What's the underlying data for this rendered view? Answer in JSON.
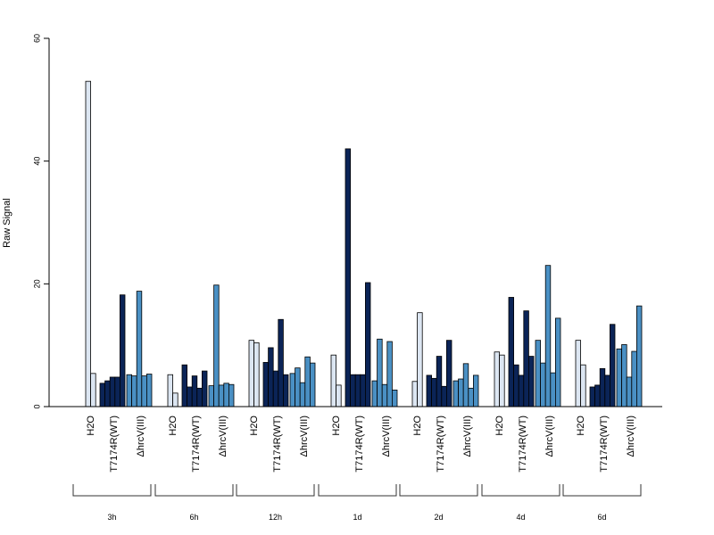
{
  "chart_data": {
    "type": "bar",
    "title": "",
    "xlabel": "",
    "ylabel": "Raw Signal",
    "ylim": [
      0,
      60
    ],
    "yticks": [
      0,
      20,
      40,
      60
    ],
    "legend": "none",
    "series": [
      {
        "key": "H2O",
        "color": "#dce6f2"
      },
      {
        "key": "T717",
        "color": "#0b2457"
      },
      {
        "key": "hrc",
        "color": "#4a90c4"
      }
    ],
    "groups": [
      {
        "label": "3h",
        "sub": [
          {
            "label": "H2O",
            "series": "H2O",
            "values": [
              53.0,
              5.4
            ]
          },
          {
            "label": "T7174R(WT)",
            "series": "T717",
            "values": [
              3.8,
              4.2,
              4.8,
              4.8,
              18.2
            ]
          },
          {
            "label": "ΔhrcV(III)",
            "series": "hrc",
            "values": [
              5.2,
              5.0,
              18.8,
              5.0,
              5.3
            ]
          }
        ]
      },
      {
        "label": "6h",
        "sub": [
          {
            "label": "H2O",
            "series": "H2O",
            "values": [
              5.2,
              2.2
            ]
          },
          {
            "label": "T7174R(WT)",
            "series": "T717",
            "values": [
              6.8,
              3.2,
              5.0,
              3.0,
              5.8
            ]
          },
          {
            "label": "ΔhrcV(III)",
            "series": "hrc",
            "values": [
              3.4,
              19.8,
              3.5,
              3.8,
              3.6
            ]
          }
        ]
      },
      {
        "label": "12h",
        "sub": [
          {
            "label": "H2O",
            "series": "H2O",
            "values": [
              10.8,
              10.4
            ]
          },
          {
            "label": "T7174R(WT)",
            "series": "T717",
            "values": [
              7.2,
              9.6,
              5.8,
              14.2,
              5.2
            ]
          },
          {
            "label": "ΔhrcV(III)",
            "series": "hrc",
            "values": [
              5.4,
              6.3,
              3.9,
              8.1,
              7.1
            ]
          }
        ]
      },
      {
        "label": "1d",
        "sub": [
          {
            "label": "H2O",
            "series": "H2O",
            "values": [
              8.4,
              3.5
            ]
          },
          {
            "label": "T7174R(WT)",
            "series": "T717",
            "values": [
              42.0,
              5.2,
              5.2,
              5.2,
              20.2
            ]
          },
          {
            "label": "ΔhrcV(III)",
            "series": "hrc",
            "values": [
              4.2,
              11.0,
              3.6,
              10.6,
              2.7
            ]
          }
        ]
      },
      {
        "label": "2d",
        "sub": [
          {
            "label": "H2O",
            "series": "H2O",
            "values": [
              4.1,
              15.3
            ]
          },
          {
            "label": "T7174R(WT)",
            "series": "T717",
            "values": [
              5.1,
              4.6,
              8.2,
              3.3,
              10.8
            ]
          },
          {
            "label": "ΔhrcV(III)",
            "series": "hrc",
            "values": [
              4.2,
              4.5,
              7.0,
              3.0,
              5.1
            ]
          }
        ]
      },
      {
        "label": "4d",
        "sub": [
          {
            "label": "H2O",
            "series": "H2O",
            "values": [
              8.9,
              8.4
            ]
          },
          {
            "label": "T7174R(WT)",
            "series": "T717",
            "values": [
              17.8,
              6.8,
              5.1,
              15.6,
              8.2
            ]
          },
          {
            "label": "ΔhrcV(III)",
            "series": "hrc",
            "values": [
              10.8,
              7.1,
              23.0,
              5.5,
              14.4
            ]
          }
        ]
      },
      {
        "label": "6d",
        "sub": [
          {
            "label": "H2O",
            "series": "H2O",
            "values": [
              10.8,
              6.8
            ]
          },
          {
            "label": "T7174R(WT)",
            "series": "T717",
            "values": [
              3.2,
              3.5,
              6.2,
              5.1,
              13.4
            ]
          },
          {
            "label": "ΔhrcV(III)",
            "series": "hrc",
            "values": [
              9.4,
              10.1,
              4.8,
              9.0,
              16.4
            ]
          }
        ]
      }
    ]
  }
}
